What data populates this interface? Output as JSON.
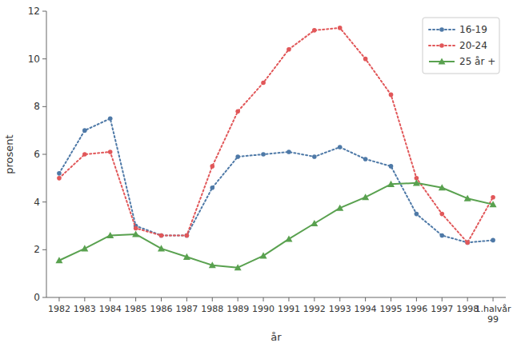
{
  "chart_data": {
    "type": "line",
    "categories": [
      "1982",
      "1983",
      "1984",
      "1985",
      "1986",
      "1987",
      "1988",
      "1989",
      "1990",
      "1991",
      "1992",
      "1993",
      "1994",
      "1995",
      "1996",
      "1997",
      "1998",
      "1.halvår\n99"
    ],
    "series": [
      {
        "name": "16-19",
        "values": [
          5.2,
          7.0,
          7.5,
          3.0,
          2.6,
          2.6,
          4.6,
          5.9,
          6.0,
          6.1,
          5.9,
          6.3,
          5.8,
          5.5,
          3.5,
          2.6,
          2.3,
          2.4
        ],
        "marker": "dot",
        "line_style": "dotted"
      },
      {
        "name": "20-24",
        "values": [
          5.0,
          6.0,
          6.1,
          2.9,
          2.6,
          2.6,
          5.5,
          7.8,
          9.0,
          10.4,
          11.2,
          11.3,
          10.0,
          8.5,
          5.0,
          3.5,
          2.3,
          4.2
        ],
        "marker": "dot",
        "line_style": "dotted"
      },
      {
        "name": "25 år +",
        "values": [
          1.55,
          2.05,
          2.6,
          2.65,
          2.05,
          1.7,
          1.35,
          1.25,
          1.75,
          2.45,
          3.1,
          3.75,
          4.2,
          4.75,
          4.8,
          4.6,
          4.15,
          3.9
        ],
        "marker": "triangle",
        "line_style": "solid"
      }
    ],
    "x_label": "år",
    "y_label": "prosent",
    "ylim": [
      0,
      12
    ],
    "yticks": [
      0,
      2,
      4,
      6,
      8,
      10,
      12
    ],
    "grid": false,
    "legend": "upper right"
  }
}
